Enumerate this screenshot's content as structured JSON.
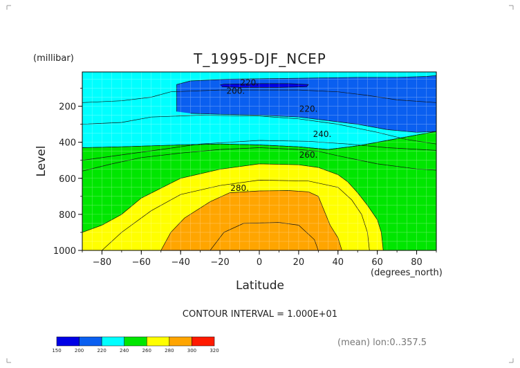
{
  "chart_data": {
    "type": "contour",
    "title": "T_1995-DJF_NCEP",
    "xlabel": "Latitude",
    "x_units": "(degrees_north)",
    "ylabel": "Level",
    "y_units": "(millibar)",
    "x_range": [
      -90,
      90
    ],
    "y_range": [
      1000,
      10
    ],
    "y_inverted": true,
    "x_ticks": [
      -80,
      -60,
      -40,
      -20,
      0,
      20,
      40,
      60,
      80
    ],
    "x_tick_labels": [
      "−80",
      "−60",
      "−40",
      "−20",
      "0",
      "20",
      "40",
      "60",
      "80"
    ],
    "y_ticks": [
      200,
      400,
      600,
      800,
      1000
    ],
    "y_tick_labels": [
      "200",
      "400",
      "600",
      "800",
      "1000"
    ],
    "grid": true,
    "contour_interval_text": "CONTOUR INTERVAL = 1.000E+01",
    "contour_interval": 10,
    "note": "(mean) lon:0..357.5",
    "levels": [
      150,
      200,
      220,
      240,
      260,
      280,
      300,
      320
    ],
    "level_labels": [
      "150",
      "200",
      "220",
      "240",
      "260",
      "280",
      "300",
      "320"
    ],
    "colors": [
      "#0000e6",
      "#0a5ff0",
      "#00ffff",
      "#00e600",
      "#ffff00",
      "#ffa500",
      "#ff1a00"
    ],
    "contour_labels": [
      "220.",
      "200.",
      "220.",
      "240.",
      "260.",
      "280."
    ],
    "regions": [
      {
        "fill": "#00e600",
        "points": [
          [
            -90,
            560
          ],
          [
            -75,
            520
          ],
          [
            -60,
            485
          ],
          [
            -40,
            460
          ],
          [
            -20,
            440
          ],
          [
            0,
            430
          ],
          [
            20,
            440
          ],
          [
            30,
            450
          ],
          [
            40,
            475
          ],
          [
            60,
            520
          ],
          [
            80,
            548
          ],
          [
            90,
            555
          ],
          [
            90,
            340
          ],
          [
            80,
            360
          ],
          [
            65,
            390
          ],
          [
            50,
            420
          ],
          [
            35,
            440
          ],
          [
            20,
            425
          ],
          [
            0,
            415
          ],
          [
            -20,
            410
          ],
          [
            -40,
            415
          ],
          [
            -55,
            420
          ],
          [
            -70,
            425
          ],
          [
            -90,
            430
          ]
        ]
      },
      {
        "fill": "#ffff00",
        "points": [
          [
            -90,
            1000
          ],
          [
            -90,
            900
          ],
          [
            -80,
            860
          ],
          [
            -70,
            800
          ],
          [
            -60,
            710
          ],
          [
            -40,
            600
          ],
          [
            -20,
            550
          ],
          [
            0,
            520
          ],
          [
            20,
            525
          ],
          [
            30,
            540
          ],
          [
            40,
            580
          ],
          [
            45,
            620
          ],
          [
            50,
            680
          ],
          [
            55,
            750
          ],
          [
            60,
            830
          ],
          [
            62,
            900
          ],
          [
            63,
            1000
          ]
        ]
      },
      {
        "fill": "#ffa500",
        "points": [
          [
            -50,
            1000
          ],
          [
            -45,
            900
          ],
          [
            -38,
            820
          ],
          [
            -25,
            730
          ],
          [
            -15,
            680
          ],
          [
            0,
            670
          ],
          [
            15,
            668
          ],
          [
            25,
            675
          ],
          [
            30,
            700
          ],
          [
            33,
            780
          ],
          [
            36,
            860
          ],
          [
            40,
            930
          ],
          [
            42,
            1000
          ]
        ]
      },
      {
        "fill": "#00ffff",
        "points": [
          [
            -90,
            430
          ],
          [
            -70,
            425
          ],
          [
            -55,
            420
          ],
          [
            -40,
            415
          ],
          [
            -20,
            410
          ],
          [
            0,
            415
          ],
          [
            20,
            425
          ],
          [
            35,
            440
          ],
          [
            50,
            420
          ],
          [
            65,
            390
          ],
          [
            80,
            360
          ],
          [
            90,
            340
          ],
          [
            90,
            10
          ],
          [
            -90,
            10
          ]
        ]
      },
      {
        "fill": "#0a5ff0",
        "points": [
          [
            -42,
            230
          ],
          [
            -42,
            80
          ],
          [
            -35,
            60
          ],
          [
            -15,
            50
          ],
          [
            20,
            45
          ],
          [
            50,
            40
          ],
          [
            70,
            40
          ],
          [
            85,
            35
          ],
          [
            90,
            30
          ],
          [
            90,
            340
          ],
          [
            80,
            345
          ],
          [
            65,
            330
          ],
          [
            50,
            300
          ],
          [
            35,
            280
          ],
          [
            20,
            260
          ],
          [
            0,
            250
          ],
          [
            -20,
            245
          ],
          [
            -35,
            240
          ]
        ]
      },
      {
        "fill": "#0000e6",
        "points": [
          [
            -20,
            82
          ],
          [
            -18,
            78
          ],
          [
            0,
            75
          ],
          [
            15,
            75
          ],
          [
            25,
            80
          ],
          [
            24,
            92
          ],
          [
            10,
            96
          ],
          [
            -10,
            96
          ],
          [
            -19,
            92
          ]
        ]
      }
    ]
  }
}
